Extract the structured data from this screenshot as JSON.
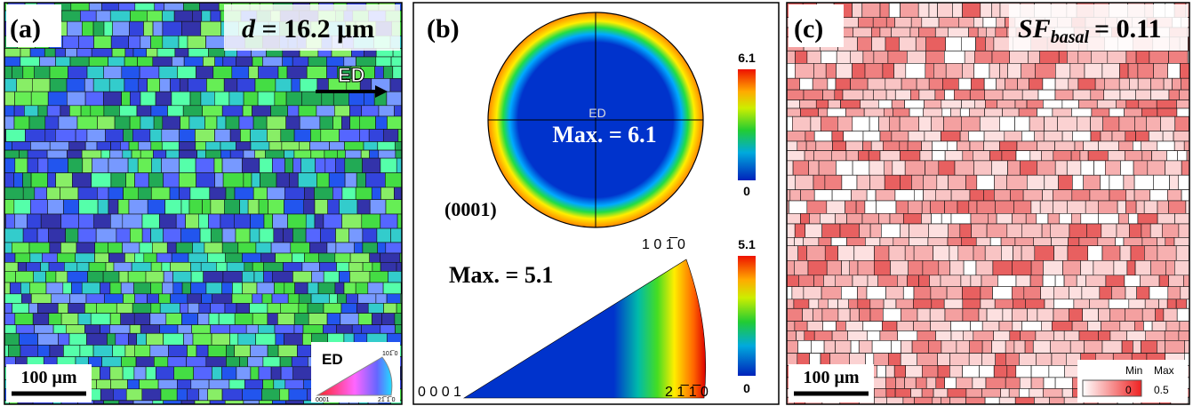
{
  "panels": [
    {
      "label": "(a)",
      "annotation": {
        "symbol": "d",
        "text": "= 16.2 μm"
      },
      "direction": "ED",
      "scale_bar": "100 μm",
      "key": {
        "title": "ED",
        "corners": [
          "0001",
          "21̅ 1̅ 0",
          "101̅ 0"
        ]
      }
    },
    {
      "label": "(b)",
      "pole_figure": {
        "direction": "ED",
        "max": "Max. = 6.1",
        "plane": "(0001)",
        "colorbar": [
          "6.1",
          "0"
        ]
      },
      "inverse_pole_figure": {
        "max": "Max. = 5.1",
        "corners": [
          "0 0 0 1",
          "2 1̅ 1̅ 0",
          "1 0 1̅ 0"
        ],
        "colorbar": [
          "5.1",
          "0"
        ]
      }
    },
    {
      "label": "(c)",
      "annotation": {
        "symbol": "SF",
        "subscript": "basal",
        "text": "= 0.11"
      },
      "scale_bar": "100 μm",
      "legend": {
        "min": "Min",
        "max": "Max",
        "min_value": "0",
        "max_value": "0.5"
      }
    }
  ]
}
